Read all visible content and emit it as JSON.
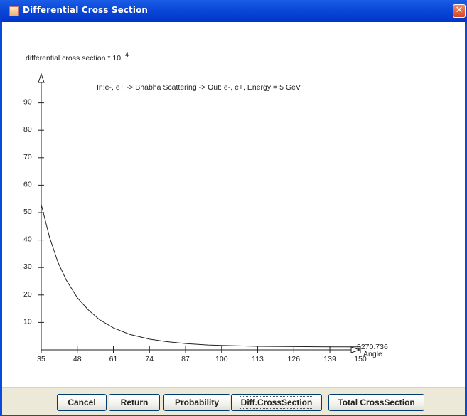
{
  "window": {
    "title": "Differential Cross Section",
    "close_glyph": "✕"
  },
  "plot": {
    "ylabel": "differential cross section * 10",
    "ylabel_exp": "-4",
    "annotation": "In:e-, e+  -> Bhabha Scattering -> Out: e-, e+, Energy = 5 GeV",
    "x_end_value": "5270.736",
    "xlabel": "Angle"
  },
  "chart_data": {
    "type": "line",
    "x_ticks": [
      "35",
      "48",
      "61",
      "74",
      "87",
      "100",
      "113",
      "126",
      "139",
      "150"
    ],
    "y_ticks": [
      "10",
      "20",
      "30",
      "40",
      "50",
      "60",
      "70",
      "80",
      "90"
    ],
    "xlim": [
      35,
      150
    ],
    "ylim": [
      0,
      100
    ],
    "x": [
      35,
      38,
      41,
      44,
      48,
      52,
      56,
      61,
      67,
      74,
      80,
      87,
      95,
      100,
      113,
      126,
      139,
      150
    ],
    "y": [
      53,
      41,
      32,
      25.5,
      19,
      14.5,
      11,
      8,
      5.6,
      3.9,
      3.0,
      2.3,
      1.8,
      1.6,
      1.3,
      1.2,
      1.1,
      1.1
    ]
  },
  "buttons": [
    {
      "label": "Cancel",
      "name": "cancel-button"
    },
    {
      "label": "Return",
      "name": "return-button"
    },
    {
      "label": "Probability",
      "name": "probability-button"
    },
    {
      "label": "Diff.CrossSection",
      "name": "diff-cross-section-button"
    },
    {
      "label": "Total CrossSection",
      "name": "total-cross-section-button"
    }
  ]
}
